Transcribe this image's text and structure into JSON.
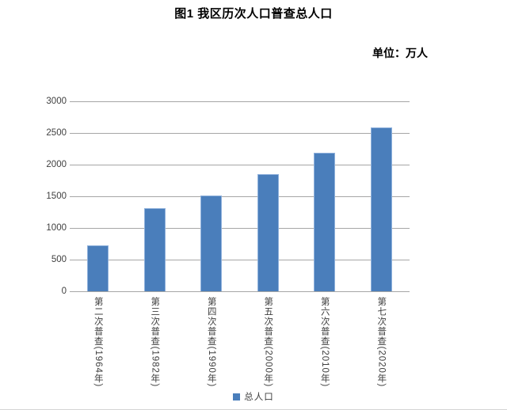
{
  "header": {
    "title": "图1 我区历次人口普查总人口",
    "unit_label": "单位：万人"
  },
  "legend": {
    "label": "总人口"
  },
  "colors": {
    "bar_fill": "#4a7ebb",
    "bar_border": "#8fb1dc",
    "gridline": "#a6a6a6",
    "axis_line": "#a6a6a6",
    "label_text": "#3f3f3f",
    "title_text": "#000000"
  },
  "chart_data": {
    "type": "bar",
    "title": "图1 我区历次人口普查总人口",
    "unit": "万人",
    "categories": [
      "第二次普查(1964年)",
      "第三次普查(1982年)",
      "第四次普查(1990年)",
      "第五次普查(2000年)",
      "第六次普查(2010年)",
      "第七次普查(2020年)"
    ],
    "series": [
      {
        "name": "总人口",
        "values": [
          728,
          1308,
          1516,
          1846,
          2182,
          2585
        ]
      }
    ],
    "xlabel": "",
    "ylabel": "",
    "ylim": [
      0,
      3000
    ],
    "yticks": [
      0,
      500,
      1000,
      1500,
      2000,
      2500,
      3000
    ],
    "grid": true,
    "legend_position": "bottom"
  }
}
